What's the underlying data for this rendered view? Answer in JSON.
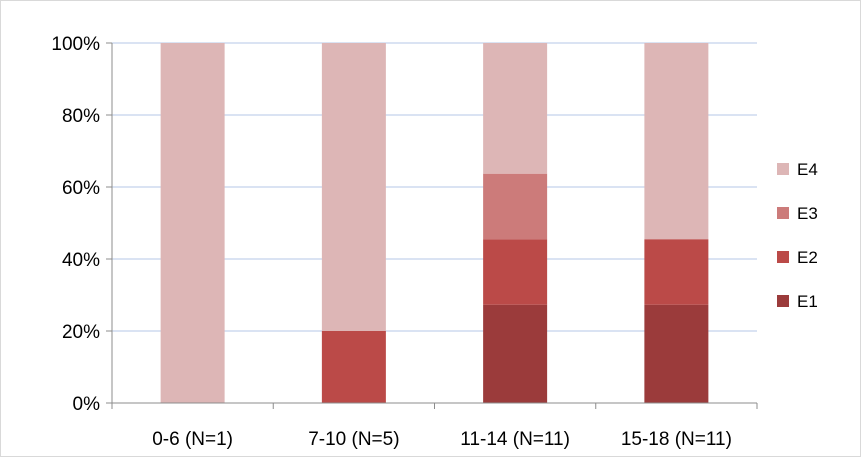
{
  "chart_data": {
    "type": "bar",
    "stacked": true,
    "percent": true,
    "categories": [
      "0-6 (N=1)",
      "7-10 (N=5)",
      "11-14 (N=11)",
      "15-18 (N=11)"
    ],
    "series": [
      {
        "name": "E1",
        "color": "#9b3b3b",
        "values": [
          0,
          0,
          27.3,
          27.3
        ]
      },
      {
        "name": "E2",
        "color": "#bb4a48",
        "values": [
          0,
          20,
          18.2,
          18.2
        ]
      },
      {
        "name": "E3",
        "color": "#cc7b7a",
        "values": [
          0,
          0,
          18.2,
          0
        ]
      },
      {
        "name": "E4",
        "color": "#ddb6b6",
        "values": [
          100,
          80,
          36.3,
          54.5
        ]
      }
    ],
    "ylim": [
      0,
      100
    ],
    "yticks": [
      "0%",
      "20%",
      "40%",
      "60%",
      "80%",
      "100%"
    ],
    "grid": true,
    "legend": "right",
    "legend_order": [
      "E4",
      "E3",
      "E2",
      "E1"
    ]
  }
}
